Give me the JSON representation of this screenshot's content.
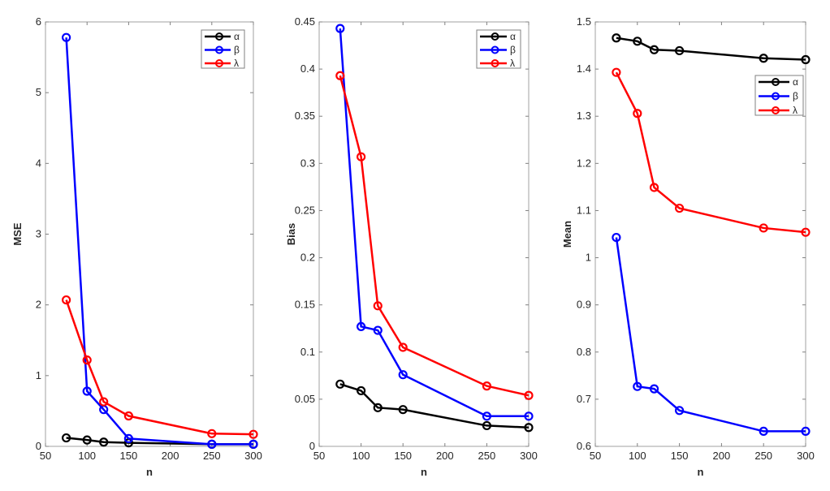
{
  "chart_data": [
    {
      "type": "line",
      "xlabel": "n",
      "ylabel": "MSE",
      "xlim": [
        50,
        300
      ],
      "ylim": [
        0,
        6
      ],
      "xticks": [
        50,
        100,
        150,
        200,
        250,
        300
      ],
      "yticks": [
        0,
        1,
        2,
        3,
        4,
        5,
        6
      ],
      "legend_position": "top-right",
      "x": [
        75,
        100,
        120,
        150,
        250,
        300
      ],
      "series": [
        {
          "name": "α",
          "color": "#000000",
          "values": [
            0.12,
            0.09,
            0.06,
            0.05,
            0.03,
            0.03
          ]
        },
        {
          "name": "β",
          "color": "#0000ff",
          "values": [
            5.78,
            0.78,
            0.52,
            0.11,
            0.03,
            0.03
          ]
        },
        {
          "name": "λ",
          "color": "#ff0000",
          "values": [
            2.07,
            1.22,
            0.63,
            0.43,
            0.18,
            0.17
          ]
        }
      ]
    },
    {
      "type": "line",
      "xlabel": "n",
      "ylabel": "Bias",
      "xlim": [
        50,
        300
      ],
      "ylim": [
        0,
        0.45
      ],
      "xticks": [
        50,
        100,
        150,
        200,
        250,
        300
      ],
      "yticks": [
        0,
        0.05,
        0.1,
        0.15,
        0.2,
        0.25,
        0.3,
        0.35,
        0.4,
        0.45
      ],
      "legend_position": "top-right",
      "x": [
        75,
        100,
        120,
        150,
        250,
        300
      ],
      "series": [
        {
          "name": "α",
          "color": "#000000",
          "values": [
            0.066,
            0.059,
            0.041,
            0.039,
            0.022,
            0.02
          ]
        },
        {
          "name": "β",
          "color": "#0000ff",
          "values": [
            0.443,
            0.127,
            0.123,
            0.076,
            0.032,
            0.032
          ]
        },
        {
          "name": "λ",
          "color": "#ff0000",
          "values": [
            0.393,
            0.307,
            0.149,
            0.105,
            0.064,
            0.054
          ]
        }
      ]
    },
    {
      "type": "line",
      "xlabel": "n",
      "ylabel": "Mean",
      "xlim": [
        50,
        300
      ],
      "ylim": [
        0.6,
        1.5
      ],
      "xticks": [
        50,
        100,
        150,
        200,
        250,
        300
      ],
      "yticks": [
        0.6,
        0.7,
        0.8,
        0.9,
        1,
        1.1,
        1.2,
        1.3,
        1.4,
        1.5
      ],
      "legend_position": "upper-right",
      "x": [
        75,
        100,
        120,
        150,
        250,
        300
      ],
      "series": [
        {
          "name": "α",
          "color": "#000000",
          "values": [
            1.466,
            1.459,
            1.441,
            1.439,
            1.423,
            1.42
          ]
        },
        {
          "name": "β",
          "color": "#0000ff",
          "values": [
            1.043,
            0.727,
            0.722,
            0.676,
            0.632,
            0.632
          ]
        },
        {
          "name": "λ",
          "color": "#ff0000",
          "values": [
            1.393,
            1.306,
            1.149,
            1.105,
            1.063,
            1.054
          ]
        }
      ]
    }
  ]
}
